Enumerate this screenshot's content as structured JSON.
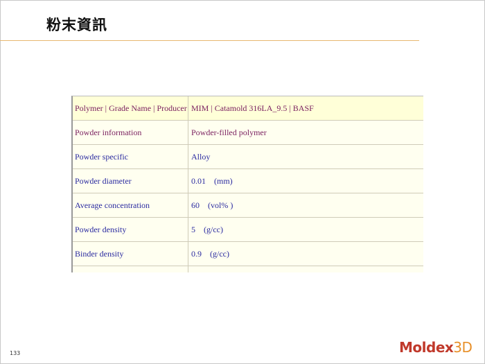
{
  "title": "粉末資訊",
  "table": {
    "rows": [
      {
        "label": "Polymer | Grade Name | Producer",
        "value": "MIM | Catamold 316LA_9.5 | BASF"
      },
      {
        "label": "Powder information",
        "value": "Powder-filled polymer"
      },
      {
        "label": "Powder specific",
        "value": "Alloy"
      },
      {
        "label": "Powder diameter",
        "value": "0.01    (mm)"
      },
      {
        "label": "Average concentration",
        "value": "60    (vol% )"
      },
      {
        "label": "Powder density",
        "value": "5    (g/cc)"
      },
      {
        "label": "Binder density",
        "value": "0.9    (g/cc)"
      },
      {
        "label": "",
        "value": ""
      }
    ]
  },
  "page_number": "133",
  "logo": {
    "main": "Moldex",
    "accent": "3D"
  }
}
